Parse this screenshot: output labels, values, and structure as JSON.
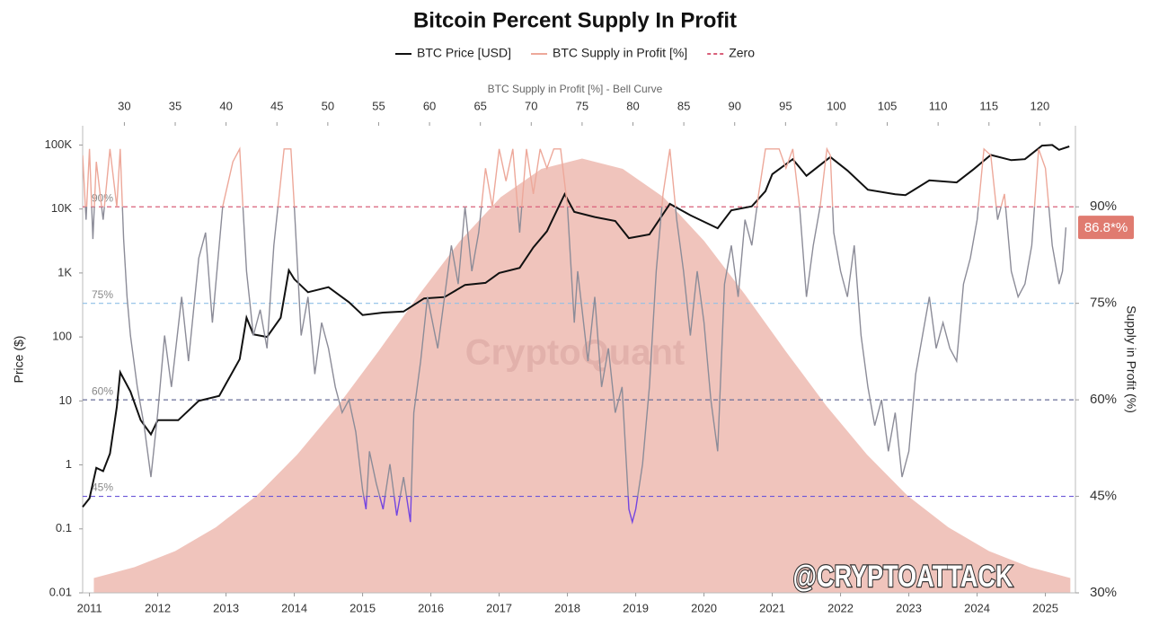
{
  "chart_data": {
    "type": "line",
    "title": "Bitcoin Percent Supply In Profit",
    "ylabel": "Price ($)",
    "y2label": "Supply in Profit (%)",
    "x2label": "BTC Supply in Profit [%] - Bell Curve",
    "watermark": "CryptoQuant",
    "handle": "@CRYPTOATTACK",
    "ylog": true,
    "xlim": [
      2010.9,
      2025.44
    ],
    "xticks": [
      2011,
      2012,
      2013,
      2014,
      2015,
      2016,
      2017,
      2018,
      2019,
      2020,
      2021,
      2022,
      2023,
      2024,
      2025
    ],
    "ylim": [
      0.01,
      200000
    ],
    "yticks": [
      0.01,
      0.1,
      1,
      10,
      100,
      {
        "value": 1000,
        "label": "1K"
      },
      {
        "value": 10000,
        "label": "10K"
      },
      {
        "value": 100000,
        "label": "100K"
      }
    ],
    "y2lim": [
      30,
      102.6
    ],
    "y2ticks": [
      {
        "value": 30,
        "label": "30%"
      },
      {
        "value": 45,
        "label": "45%"
      },
      {
        "value": 60,
        "label": "60%"
      },
      {
        "value": 75,
        "label": "75%"
      },
      {
        "value": 90,
        "label": "90%"
      }
    ],
    "x2lim": [
      25.9,
      123.5
    ],
    "x2ticks": [
      30,
      35,
      40,
      45,
      50,
      55,
      60,
      65,
      70,
      75,
      80,
      85,
      90,
      95,
      100,
      105,
      110,
      115,
      120
    ],
    "reference_lines": [
      {
        "value": 90,
        "label": "90%",
        "color": "#d9607a",
        "name": "Zero"
      },
      {
        "value": 75,
        "label": "75%",
        "color": "#8fbfe6"
      },
      {
        "value": 60,
        "label": "60%",
        "color": "#6a6f98"
      },
      {
        "value": 45,
        "label": "45%",
        "color": "#6a55d8"
      }
    ],
    "current_label": {
      "value": 86.8,
      "label": "86.8*%",
      "color": "#e07b70"
    },
    "bell_curve": {
      "color": "#f0c4bc",
      "x": [
        27,
        31,
        35,
        39,
        43,
        47,
        51,
        55,
        59,
        63,
        67,
        71,
        75,
        79,
        83,
        87,
        91,
        95,
        99,
        103,
        107,
        111,
        115,
        119,
        123
      ],
      "values": [
        32.3,
        34.0,
        36.5,
        40.2,
        45.1,
        51.5,
        59.1,
        67.6,
        76.4,
        84.7,
        91.5,
        95.9,
        97.5,
        95.9,
        91.5,
        84.7,
        76.4,
        67.6,
        59.1,
        51.5,
        45.1,
        40.2,
        36.5,
        34.0,
        32.3
      ]
    },
    "series": [
      {
        "name": "BTC Price [USD]",
        "color": "#111111",
        "axis": "y",
        "x": [
          2010.9,
          2011.0,
          2011.1,
          2011.2,
          2011.3,
          2011.4,
          2011.45,
          2011.6,
          2011.75,
          2011.9,
          2012.0,
          2012.3,
          2012.6,
          2012.9,
          2013.2,
          2013.3,
          2013.4,
          2013.6,
          2013.8,
          2013.92,
          2014.0,
          2014.2,
          2014.5,
          2014.8,
          2015.0,
          2015.3,
          2015.6,
          2015.9,
          2016.2,
          2016.5,
          2016.8,
          2017.0,
          2017.3,
          2017.5,
          2017.7,
          2017.96,
          2018.1,
          2018.4,
          2018.7,
          2018.9,
          2019.2,
          2019.5,
          2019.8,
          2020.2,
          2020.4,
          2020.7,
          2020.9,
          2021.0,
          2021.3,
          2021.5,
          2021.85,
          2022.1,
          2022.4,
          2022.8,
          2022.95,
          2023.3,
          2023.7,
          2023.95,
          2024.2,
          2024.5,
          2024.7,
          2024.95,
          2025.1,
          2025.2,
          2025.35
        ],
        "values": [
          0.22,
          0.3,
          0.9,
          0.8,
          1.5,
          8,
          28,
          14,
          5,
          3,
          5,
          5,
          10,
          12,
          45,
          200,
          110,
          100,
          200,
          1100,
          800,
          500,
          600,
          350,
          220,
          240,
          250,
          400,
          420,
          650,
          700,
          1000,
          1200,
          2500,
          4500,
          17000,
          9000,
          7500,
          6500,
          3500,
          4000,
          12000,
          8000,
          5000,
          9500,
          11000,
          19000,
          35000,
          60000,
          33000,
          65000,
          40000,
          20000,
          17000,
          16500,
          28000,
          26000,
          42000,
          70000,
          58000,
          60000,
          98000,
          100000,
          84000,
          95000
        ]
      },
      {
        "name": "BTC Supply in Profit [%]",
        "color": "#eda89a",
        "mid_color": "#8c8c98",
        "low_color": "#7446e0",
        "axis": "y2",
        "x": [
          2010.9,
          2010.95,
          2011.0,
          2011.05,
          2011.1,
          2011.2,
          2011.3,
          2011.4,
          2011.45,
          2011.5,
          2011.55,
          2011.6,
          2011.7,
          2011.8,
          2011.9,
          2012.0,
          2012.1,
          2012.2,
          2012.35,
          2012.45,
          2012.6,
          2012.7,
          2012.8,
          2012.95,
          2013.1,
          2013.2,
          2013.3,
          2013.4,
          2013.5,
          2013.6,
          2013.7,
          2013.85,
          2013.95,
          2014.0,
          2014.1,
          2014.2,
          2014.3,
          2014.4,
          2014.5,
          2014.6,
          2014.7,
          2014.8,
          2014.9,
          2015.0,
          2015.05,
          2015.1,
          2015.2,
          2015.3,
          2015.4,
          2015.5,
          2015.6,
          2015.7,
          2015.75,
          2015.85,
          2015.95,
          2016.1,
          2016.2,
          2016.3,
          2016.4,
          2016.5,
          2016.6,
          2016.7,
          2016.8,
          2016.9,
          2017.0,
          2017.1,
          2017.2,
          2017.3,
          2017.4,
          2017.5,
          2017.6,
          2017.7,
          2017.8,
          2017.9,
          2018.0,
          2018.1,
          2018.15,
          2018.3,
          2018.4,
          2018.5,
          2018.6,
          2018.7,
          2018.8,
          2018.9,
          2018.95,
          2019.0,
          2019.1,
          2019.2,
          2019.3,
          2019.4,
          2019.5,
          2019.6,
          2019.7,
          2019.8,
          2019.9,
          2020.0,
          2020.1,
          2020.2,
          2020.3,
          2020.4,
          2020.5,
          2020.6,
          2020.7,
          2020.8,
          2020.9,
          2021.0,
          2021.1,
          2021.2,
          2021.3,
          2021.4,
          2021.5,
          2021.6,
          2021.7,
          2021.8,
          2021.85,
          2021.9,
          2022.0,
          2022.1,
          2022.2,
          2022.3,
          2022.4,
          2022.5,
          2022.6,
          2022.7,
          2022.8,
          2022.9,
          2023.0,
          2023.1,
          2023.2,
          2023.3,
          2023.4,
          2023.5,
          2023.6,
          2023.7,
          2023.8,
          2023.9,
          2024.0,
          2024.1,
          2024.2,
          2024.3,
          2024.4,
          2024.5,
          2024.6,
          2024.7,
          2024.8,
          2024.9,
          2025.0,
          2025.1,
          2025.2,
          2025.25,
          2025.3
        ],
        "values": [
          98,
          88,
          99,
          85,
          97,
          88,
          99,
          90,
          99,
          85,
          76,
          70,
          62,
          56,
          48,
          58,
          70,
          62,
          76,
          66,
          82,
          86,
          72,
          90,
          97,
          99,
          80,
          70,
          74,
          68,
          84,
          99,
          99,
          90,
          70,
          76,
          64,
          72,
          68,
          62,
          58,
          60,
          55,
          46,
          43,
          52,
          47,
          43,
          50,
          42,
          48,
          41,
          58,
          66,
          76,
          68,
          76,
          84,
          78,
          90,
          80,
          86,
          96,
          90,
          99,
          94,
          99,
          86,
          99,
          92,
          99,
          96,
          99,
          99,
          90,
          72,
          80,
          66,
          76,
          62,
          68,
          58,
          62,
          43,
          41,
          43,
          50,
          62,
          80,
          92,
          99,
          88,
          80,
          70,
          80,
          72,
          60,
          52,
          78,
          84,
          76,
          88,
          84,
          92,
          99,
          99,
          99,
          96,
          99,
          90,
          76,
          84,
          90,
          99,
          98,
          86,
          80,
          76,
          84,
          70,
          62,
          56,
          60,
          52,
          58,
          48,
          52,
          64,
          70,
          76,
          68,
          72,
          68,
          66,
          78,
          82,
          88,
          99,
          98,
          88,
          92,
          80,
          76,
          78,
          84,
          99,
          96,
          84,
          78,
          80,
          86.8
        ]
      }
    ]
  }
}
